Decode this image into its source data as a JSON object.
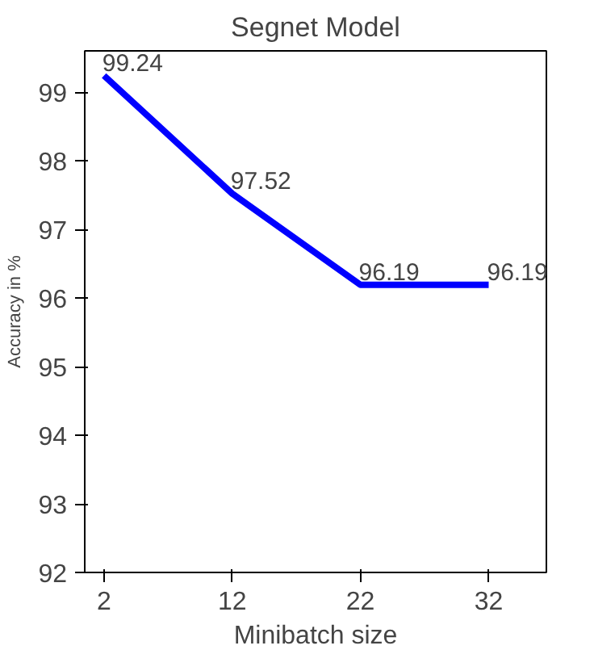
{
  "chart_data": {
    "type": "line",
    "title": "Segnet Model",
    "xlabel": "Minibatch size",
    "ylabel": "Accuracy in %",
    "x": [
      2,
      12,
      22,
      32
    ],
    "series": [
      {
        "color": "#0000ff",
        "values": [
          99.24,
          97.52,
          96.19,
          96.19
        ]
      }
    ],
    "xlim": [
      0.5,
      36.5
    ],
    "xticks": [
      2,
      12,
      22,
      32
    ],
    "ylim": [
      92,
      99.6
    ],
    "yticks": [
      92,
      93,
      94,
      95,
      96,
      97,
      98,
      99
    ],
    "data_labels": true,
    "grid": false,
    "marker": "none",
    "line_style": "solid"
  }
}
